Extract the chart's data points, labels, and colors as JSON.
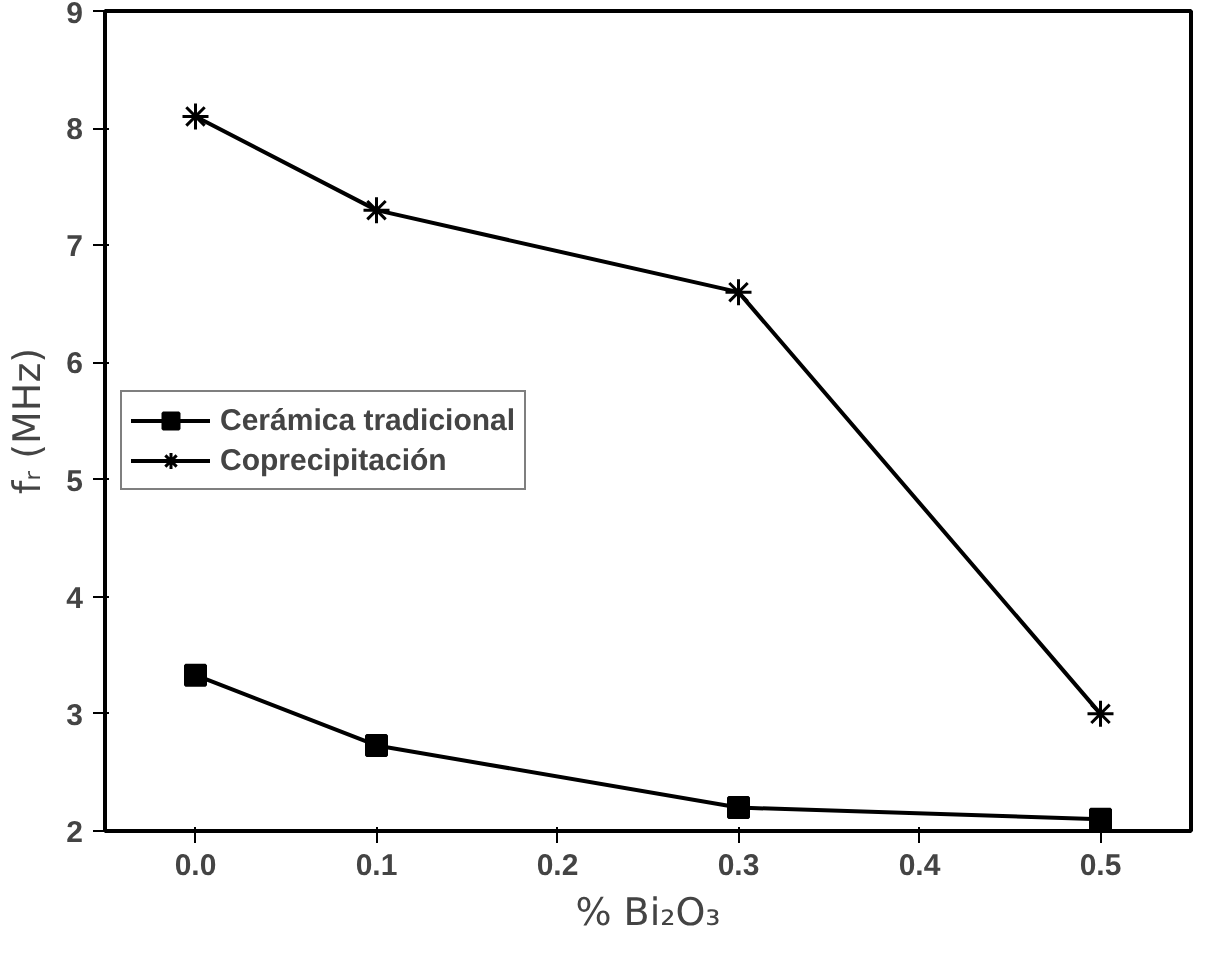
{
  "chart_data": {
    "type": "line",
    "xlabel": "% Bi₂O₃",
    "ylabel": "fᵣ (MHz)",
    "x": [
      0.0,
      0.1,
      0.3,
      0.5
    ],
    "series": [
      {
        "name": "Cerámica tradicional",
        "color": "#000000",
        "marker": "square",
        "values": [
          3.33,
          2.73,
          2.2,
          2.1
        ]
      },
      {
        "name": "Coprecipitación",
        "color": "#000000",
        "marker": "cross",
        "values": [
          8.1,
          7.3,
          6.6,
          3.0
        ]
      }
    ],
    "xlim": [
      -0.05,
      0.55
    ],
    "xticks": [
      {
        "value": 0.0,
        "label": "0.0"
      },
      {
        "value": 0.1,
        "label": "0.1"
      },
      {
        "value": 0.2,
        "label": "0.2"
      },
      {
        "value": 0.3,
        "label": "0.3"
      },
      {
        "value": 0.4,
        "label": "0.4"
      },
      {
        "value": 0.5,
        "label": "0.5"
      }
    ],
    "ylim": [
      2,
      9
    ],
    "yticks": [
      2,
      3,
      4,
      5,
      6,
      7,
      8,
      9
    ],
    "grid": false,
    "legend": "left",
    "line_style": "solid"
  }
}
